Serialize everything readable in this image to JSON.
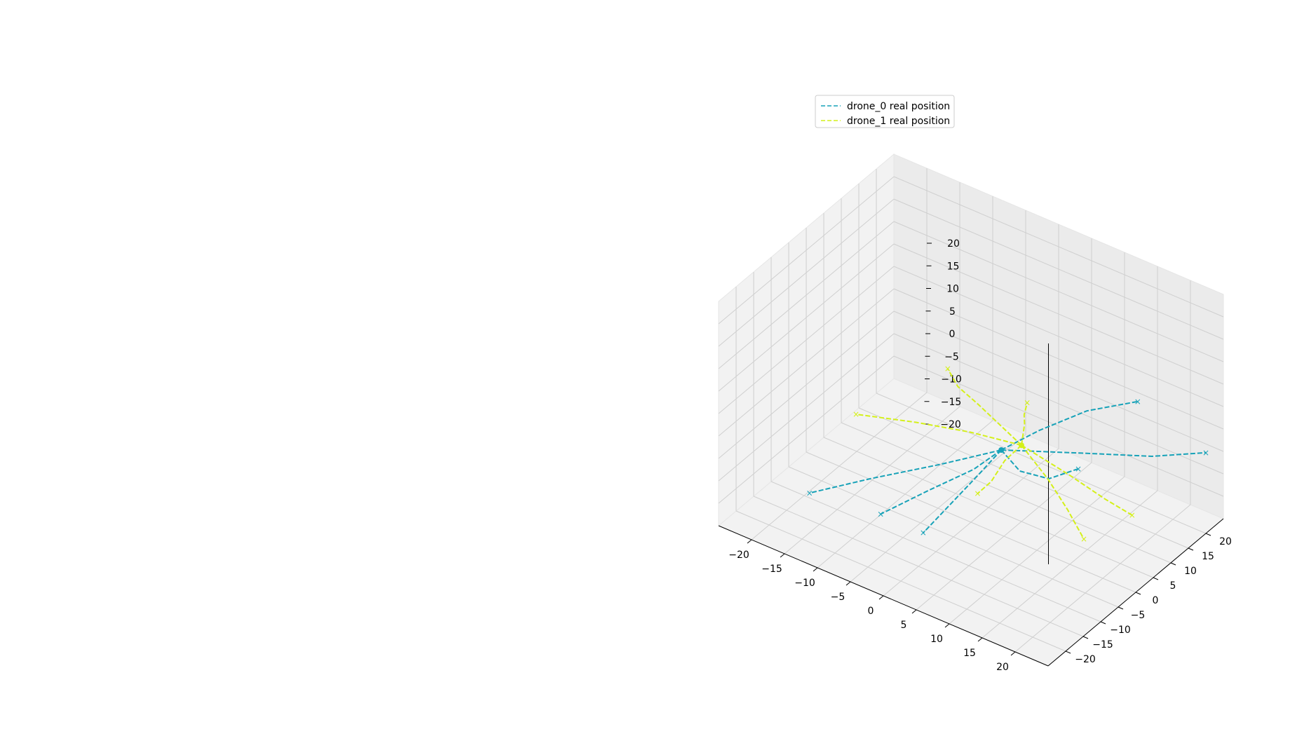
{
  "chart_data": {
    "type": "line",
    "projection": "3d",
    "grid": true,
    "legend_placement": "top-right",
    "xlim": [
      -25,
      25
    ],
    "ylim": [
      -25,
      25
    ],
    "zlim": [
      -25,
      25
    ],
    "x_ticks": [
      "−20",
      "−15",
      "−10",
      "−5",
      "0",
      "5",
      "10",
      "15",
      "20"
    ],
    "y_ticks": [
      "−20",
      "−15",
      "−10",
      "−5",
      "0",
      "5",
      "10",
      "15",
      "20"
    ],
    "z_ticks": [
      "−20",
      "−15",
      "−10",
      "−5",
      "0",
      "5",
      "10",
      "15",
      "20"
    ],
    "series": [
      {
        "name": "drone_0 real position",
        "color": "#17a2b8",
        "style": "dashed",
        "hub": [
          3,
          3,
          -9
        ],
        "paths": [
          [
            [
              3,
              3,
              -9
            ],
            [
              -3,
              -3,
              -12
            ],
            [
              -10,
              -10,
              -15
            ],
            [
              -16,
              -16,
              -18
            ]
          ],
          [
            [
              3,
              3,
              -9
            ],
            [
              2,
              -3,
              -10
            ],
            [
              0,
              -12,
              -10
            ],
            [
              -2,
              -22,
              -10
            ]
          ],
          [
            [
              3,
              3,
              -9
            ],
            [
              9,
              -3,
              -6
            ],
            [
              15,
              -6,
              -2
            ],
            [
              20,
              -7,
              4
            ]
          ],
          [
            [
              3,
              3,
              -9
            ],
            [
              12,
              9,
              -8
            ],
            [
              20,
              14,
              -7
            ],
            [
              25,
              20,
              -7
            ]
          ],
          [
            [
              3,
              3,
              -9
            ],
            [
              5,
              10,
              -8
            ],
            [
              8,
              18,
              -7
            ],
            [
              12,
              25,
              -7
            ]
          ],
          [
            [
              3,
              3,
              -9
            ],
            [
              1,
              0,
              -14
            ],
            [
              -1,
              -4,
              -19
            ],
            [
              -3,
              -8,
              -24
            ]
          ]
        ]
      },
      {
        "name": "drone_1 real position",
        "color": "#d4f019",
        "style": "dashed",
        "hub": [
          5,
          5,
          -8
        ],
        "paths": [
          [
            [
              5,
              5,
              -8
            ],
            [
              0,
              2,
              0
            ],
            [
              -2,
              0,
              4
            ],
            [
              -3,
              -1,
              8
            ]
          ],
          [
            [
              5,
              5,
              -8
            ],
            [
              1,
              -2,
              -3
            ],
            [
              -4,
              -8,
              0
            ],
            [
              -10,
              -14,
              2
            ]
          ],
          [
            [
              5,
              5,
              -8
            ],
            [
              9,
              5,
              -13
            ],
            [
              12,
              5,
              -18
            ],
            [
              15,
              4,
              -22
            ]
          ],
          [
            [
              5,
              5,
              -8
            ],
            [
              10,
              9,
              -14
            ],
            [
              14,
              12,
              -19
            ],
            [
              17,
              14,
              -22
            ]
          ],
          [
            [
              5,
              5,
              -8
            ],
            [
              6,
              4,
              -2
            ],
            [
              7,
              2,
              2
            ],
            [
              8,
              1,
              6
            ]
          ],
          [
            [
              5,
              5,
              -8
            ],
            [
              3,
              4,
              -12
            ],
            [
              2,
              2,
              -16
            ],
            [
              1,
              0,
              -18
            ]
          ]
        ]
      }
    ]
  }
}
